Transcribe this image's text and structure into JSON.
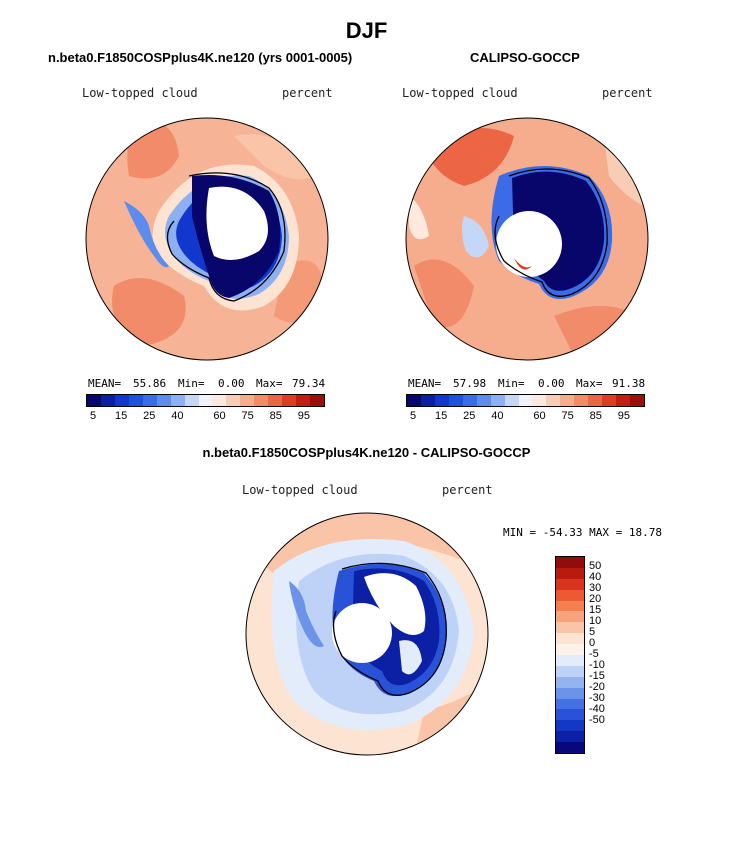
{
  "figure": {
    "title": "DJF",
    "panels": [
      {
        "title": "n.beta0.F1850COSPplus4K.ne120 (yrs 0001-0005)",
        "variable": "Low-topped cloud",
        "units": "percent",
        "mean_label": "MEAN=",
        "mean": "55.86",
        "min_label": "Min=",
        "min": "0.00",
        "max_label": "Max=",
        "max": "79.34"
      },
      {
        "title": "CALIPSO-GOCCP",
        "variable": "Low-topped cloud",
        "units": "percent",
        "mean_label": "MEAN=",
        "mean": "57.98",
        "min_label": "Min=",
        "min": "0.00",
        "max_label": "Max=",
        "max": "91.38"
      }
    ],
    "abs_colorbar": {
      "ticks": [
        "5",
        "15",
        "25",
        "40",
        "60",
        "75",
        "85",
        "95"
      ],
      "colors": [
        "#08056b",
        "#0a1fa6",
        "#1137cc",
        "#2050de",
        "#3b6be6",
        "#5d8cee",
        "#8db0f2",
        "#c4d7f7",
        "#eef3fc",
        "#fde9dd",
        "#f9cdb5",
        "#f6ad8e",
        "#f28b6a",
        "#ec6646",
        "#dd3d24",
        "#c21d12",
        "#99100b"
      ]
    },
    "difference": {
      "title": "n.beta0.F1850COSPplus4K.ne120 - CALIPSO-GOCCP",
      "variable": "Low-topped cloud",
      "units": "percent",
      "minmax_text": "MIN = -54.33 MAX =  18.78",
      "colorbar": {
        "ticks": [
          "50",
          "40",
          "30",
          "20",
          "15",
          "10",
          "5",
          "0",
          "-5",
          "-10",
          "-15",
          "-20",
          "-30",
          "-40",
          "-50"
        ],
        "colors": [
          "#8f0d0a",
          "#b81a0f",
          "#d9351c",
          "#ec5a35",
          "#f4804f",
          "#f7a37d",
          "#fac4a8",
          "#fde3d2",
          "#fdf2ea",
          "#e3ecfb",
          "#bed1f6",
          "#94b4f0",
          "#6b93ea",
          "#4472e3",
          "#2852d8",
          "#1537c6",
          "#0b20a4",
          "#08087a"
        ]
      }
    }
  }
}
